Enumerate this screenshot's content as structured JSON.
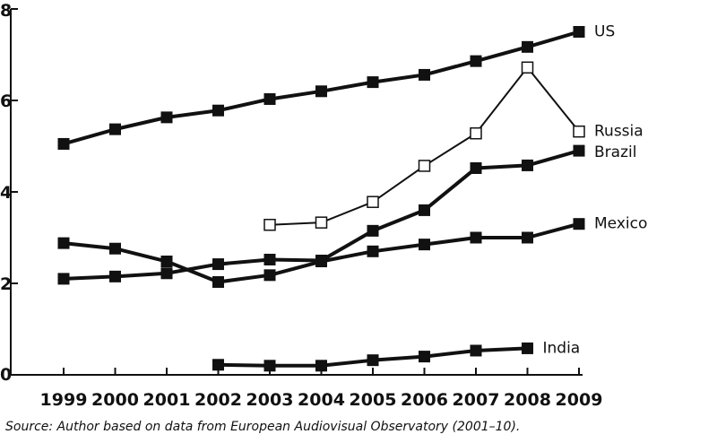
{
  "chart_data": {
    "type": "line",
    "categories": [
      "1999",
      "2000",
      "2001",
      "2002",
      "2003",
      "2004",
      "2005",
      "2006",
      "2007",
      "2008",
      "2009"
    ],
    "ylim": [
      0,
      8
    ],
    "yticks": [
      "0",
      "2",
      "4",
      "6",
      "8"
    ],
    "grid": false,
    "series": [
      {
        "name": "US",
        "marker": "filled",
        "values": [
          5.05,
          5.37,
          5.63,
          5.78,
          6.03,
          6.2,
          6.4,
          6.56,
          6.86,
          7.17,
          7.5
        ]
      },
      {
        "name": "Russia",
        "marker": "hollow",
        "values": [
          null,
          null,
          null,
          null,
          3.28,
          3.33,
          3.78,
          4.57,
          5.28,
          6.72,
          5.32
        ]
      },
      {
        "name": "Brazil",
        "marker": "filled",
        "values": [
          2.1,
          2.15,
          2.22,
          2.42,
          2.52,
          2.5,
          3.15,
          3.6,
          4.52,
          4.58,
          4.9
        ]
      },
      {
        "name": "Mexico",
        "marker": "filled",
        "values": [
          2.88,
          2.76,
          2.48,
          2.03,
          2.18,
          2.48,
          2.7,
          2.85,
          3.0,
          3.0,
          3.3
        ]
      },
      {
        "name": "India",
        "marker": "filled",
        "values": [
          null,
          null,
          null,
          0.22,
          0.2,
          0.2,
          0.32,
          0.4,
          0.53,
          0.58,
          null
        ]
      }
    ]
  },
  "source": "Source: Author based on data from European Audiovisual Observatory (2001–10)."
}
